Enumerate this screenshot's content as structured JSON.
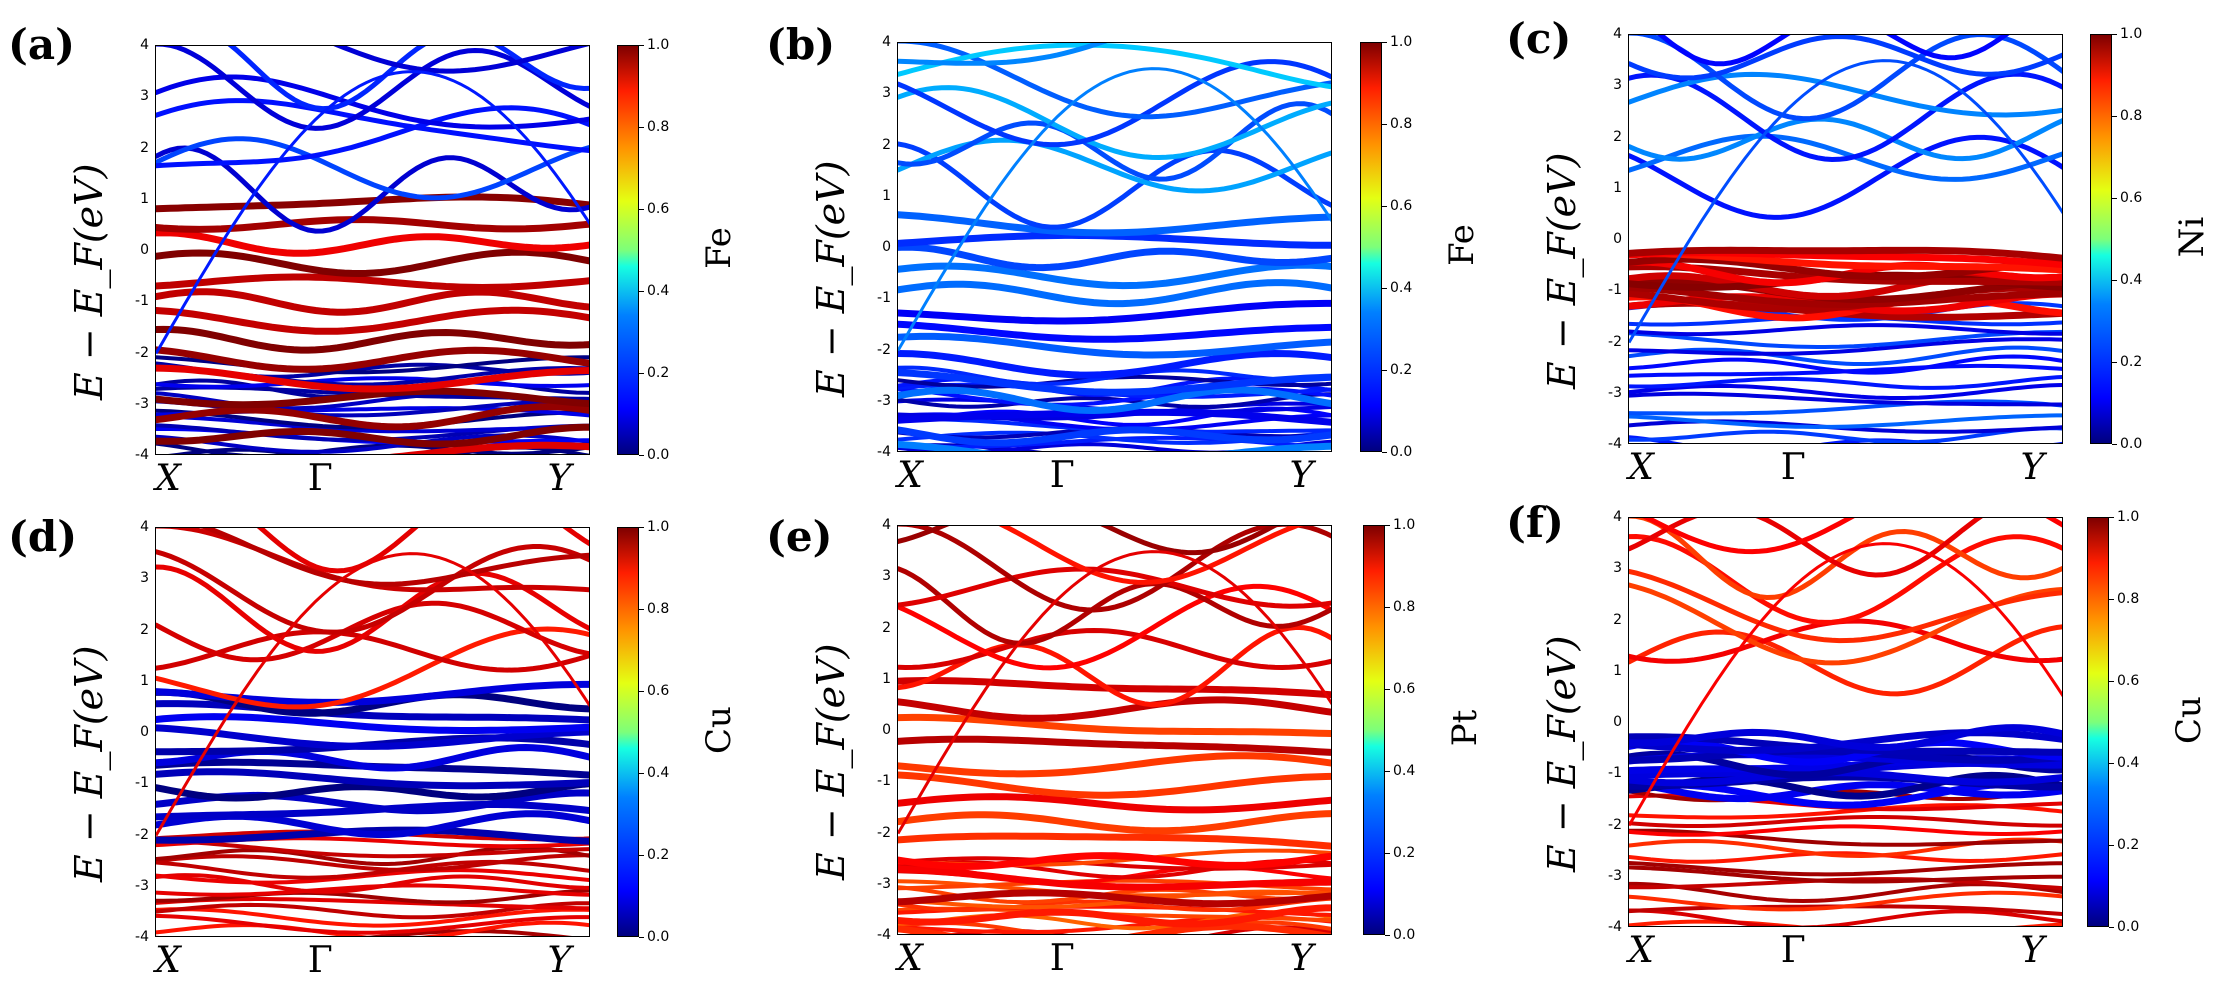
{
  "chart_data": [
    {
      "type": "line",
      "panel_label": "(a)",
      "ylabel": "E − E_F(eV)",
      "ylim": [
        -4,
        4
      ],
      "yticks": [
        "-4",
        "-3",
        "-2",
        "-1",
        "0",
        "1",
        "2",
        "3",
        "4"
      ],
      "xticks": [
        "X",
        "Γ",
        "Y"
      ],
      "colorbar_label": "Fe",
      "colorbar_ticks": [
        "0.0",
        "0.2",
        "0.4",
        "0.6",
        "0.8",
        "1.0"
      ]
    },
    {
      "type": "line",
      "panel_label": "(b)",
      "ylabel": "E − E_F(eV)",
      "ylim": [
        -4,
        4
      ],
      "yticks": [
        "-4",
        "-3",
        "-2",
        "-1",
        "0",
        "1",
        "2",
        "3",
        "4"
      ],
      "xticks": [
        "X",
        "Γ",
        "Y"
      ],
      "colorbar_label": "Fe",
      "colorbar_ticks": [
        "0.0",
        "0.2",
        "0.4",
        "0.6",
        "0.8",
        "1.0"
      ]
    },
    {
      "type": "line",
      "panel_label": "(c)",
      "ylabel": "E − E_F(eV)",
      "ylim": [
        -4,
        4
      ],
      "yticks": [
        "-4",
        "-3",
        "-2",
        "-1",
        "0",
        "1",
        "2",
        "3",
        "4"
      ],
      "xticks": [
        "X",
        "Γ",
        "Y"
      ],
      "colorbar_label": "Ni",
      "colorbar_ticks": [
        "0.0",
        "0.2",
        "0.4",
        "0.6",
        "0.8",
        "1.0"
      ]
    },
    {
      "type": "line",
      "panel_label": "(d)",
      "ylabel": "E − E_F(eV)",
      "ylim": [
        -4,
        4
      ],
      "yticks": [
        "-4",
        "-3",
        "-2",
        "-1",
        "0",
        "1",
        "2",
        "3",
        "4"
      ],
      "xticks": [
        "X",
        "Γ",
        "Y"
      ],
      "colorbar_label": "Cu",
      "colorbar_ticks": [
        "0.0",
        "0.2",
        "0.4",
        "0.6",
        "0.8",
        "1.0"
      ]
    },
    {
      "type": "line",
      "panel_label": "(e)",
      "ylabel": "E − E_F(eV)",
      "ylim": [
        -4,
        4
      ],
      "yticks": [
        "-4",
        "-3",
        "-2",
        "-1",
        "0",
        "1",
        "2",
        "3",
        "4"
      ],
      "xticks": [
        "X",
        "Γ",
        "Y"
      ],
      "colorbar_label": "Pt",
      "colorbar_ticks": [
        "0.0",
        "0.2",
        "0.4",
        "0.6",
        "0.8",
        "1.0"
      ]
    },
    {
      "type": "line",
      "panel_label": "(f)",
      "ylabel": "E − E_F(eV)",
      "ylim": [
        -4,
        4
      ],
      "yticks": [
        "-4",
        "-3",
        "-2",
        "-1",
        "0",
        "1",
        "2",
        "3",
        "4"
      ],
      "xticks": [
        "X",
        "Γ",
        "Y"
      ],
      "colorbar_label": "Cu",
      "colorbar_ticks": [
        "0.0",
        "0.2",
        "0.4",
        "0.6",
        "0.8",
        "1.0"
      ]
    }
  ],
  "band_profiles": [
    {
      "flat_low": -4,
      "flat_high": 0.9,
      "flat_weight": 0.95,
      "deep_low": -4,
      "deep_high": -2.2,
      "deep_weight": 0.05,
      "upper_weight": 0.15
    },
    {
      "flat_low": -4,
      "flat_high": 0.5,
      "flat_weight": 0.18,
      "deep_low": -4,
      "deep_high": -2.5,
      "deep_weight": 0.1,
      "upper_weight": 0.25
    },
    {
      "flat_low": -1.4,
      "flat_high": -0.3,
      "flat_weight": 0.92,
      "deep_low": -4,
      "deep_high": -1.4,
      "deep_weight": 0.15,
      "upper_weight": 0.2
    },
    {
      "flat_low": -2,
      "flat_high": 0.8,
      "flat_weight": 0.05,
      "deep_low": -4,
      "deep_high": -2,
      "deep_weight": 0.93,
      "upper_weight": 0.9
    },
    {
      "flat_low": -4,
      "flat_high": 0.8,
      "flat_weight": 0.88,
      "deep_low": -4,
      "deep_high": -2.5,
      "deep_weight": 0.85,
      "upper_weight": 0.9
    },
    {
      "flat_low": -1.4,
      "flat_high": -0.3,
      "flat_weight": 0.05,
      "deep_low": -4,
      "deep_high": -1.4,
      "deep_weight": 0.9,
      "upper_weight": 0.88
    }
  ]
}
